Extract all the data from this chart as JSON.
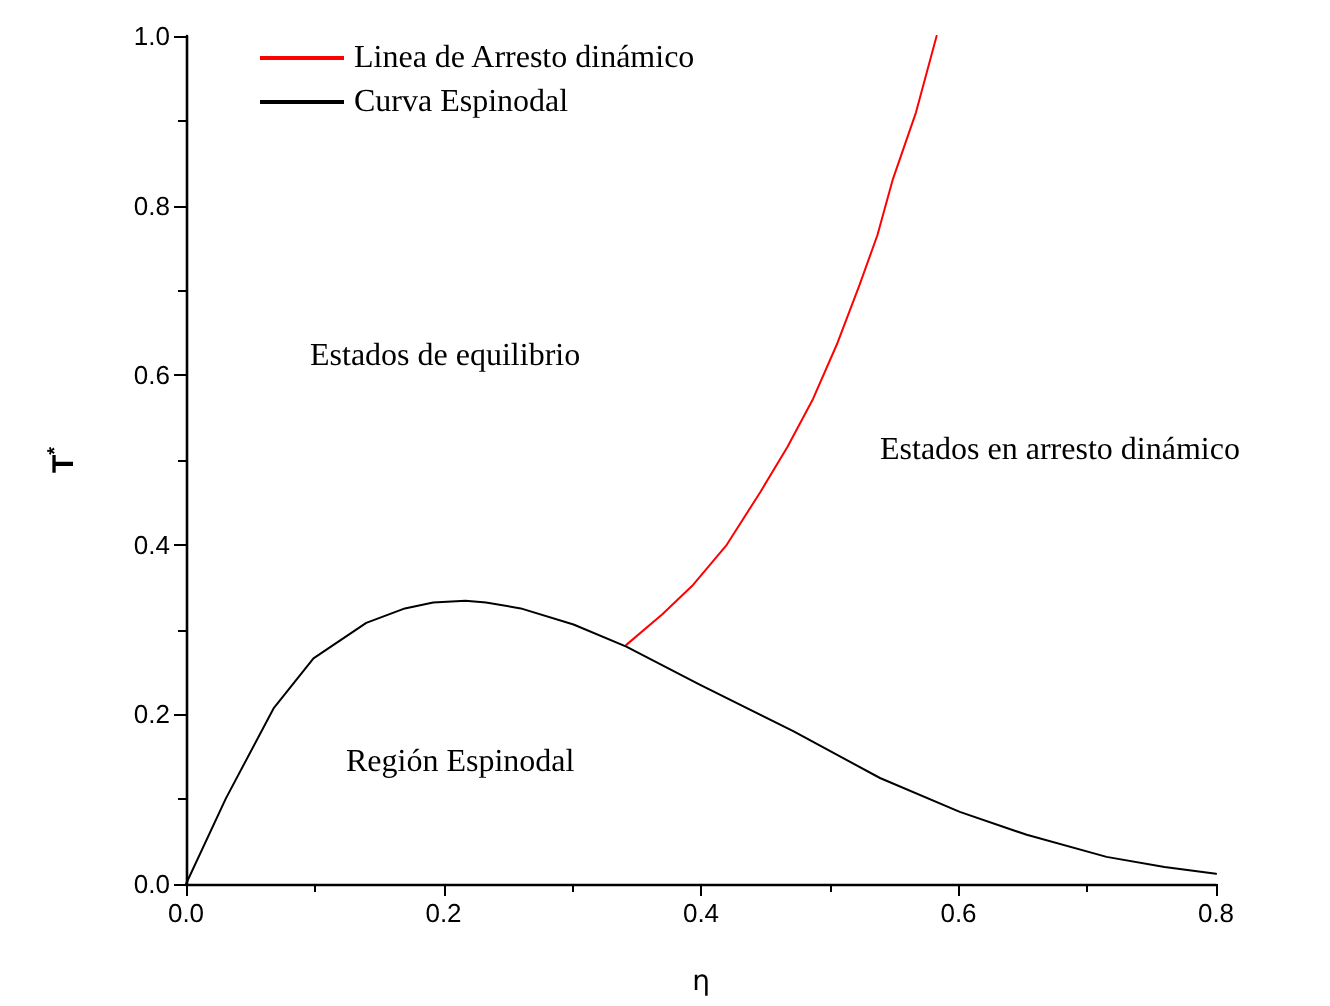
{
  "chart_data": {
    "type": "line",
    "xlabel": "η",
    "ylabel": "T$^{*}$",
    "xlim": [
      0,
      0.8
    ],
    "xticks": [
      {
        "value": 0,
        "label": "0.0"
      },
      {
        "value": 0.2,
        "label": "0.2"
      },
      {
        "value": 0.4,
        "label": "0.4"
      },
      {
        "value": 0.6,
        "label": "0.6"
      },
      {
        "value": 0.8,
        "label": "0.8"
      }
    ],
    "ylim": [
      0,
      1
    ],
    "yticks": [
      {
        "value": 0,
        "label": "0.0"
      },
      {
        "value": 0.2,
        "label": "0.2"
      },
      {
        "value": 0.4,
        "label": "0.4"
      },
      {
        "value": 0.6,
        "label": "0.6"
      },
      {
        "value": 0.8,
        "label": "0.8"
      },
      {
        "value": 1,
        "label": "1.0"
      }
    ],
    "grid": false,
    "legend": "top left",
    "marker": "none",
    "line_style": "solid",
    "series": [
      {
        "name": "Linea de Arresto dinámico",
        "color": "#ff0000",
        "x": [
          0.342,
          0.37,
          0.394,
          0.42,
          0.446,
          0.467,
          0.487,
          0.506,
          0.523,
          0.537,
          0.549,
          0.567,
          0.583
        ],
        "values": [
          0.282,
          0.318,
          0.353,
          0.4,
          0.462,
          0.515,
          0.572,
          0.638,
          0.706,
          0.765,
          0.831,
          0.91,
          1.0
        ]
      },
      {
        "name": "Curva Espinodal",
        "color": "#000000",
        "x": [
          0,
          0.031,
          0.068,
          0.099,
          0.14,
          0.17,
          0.192,
          0.217,
          0.233,
          0.26,
          0.301,
          0.342,
          0.399,
          0.472,
          0.539,
          0.601,
          0.653,
          0.715,
          0.76,
          0.8
        ],
        "values": [
          0,
          0.101,
          0.207,
          0.266,
          0.308,
          0.325,
          0.332,
          0.334,
          0.332,
          0.325,
          0.306,
          0.28,
          0.235,
          0.18,
          0.125,
          0.085,
          0.058,
          0.032,
          0.02,
          0.012
        ]
      }
    ],
    "annotations": [
      "Estados de equilibrio",
      "Estados en arresto dinámico",
      "Región Espinodal"
    ]
  }
}
